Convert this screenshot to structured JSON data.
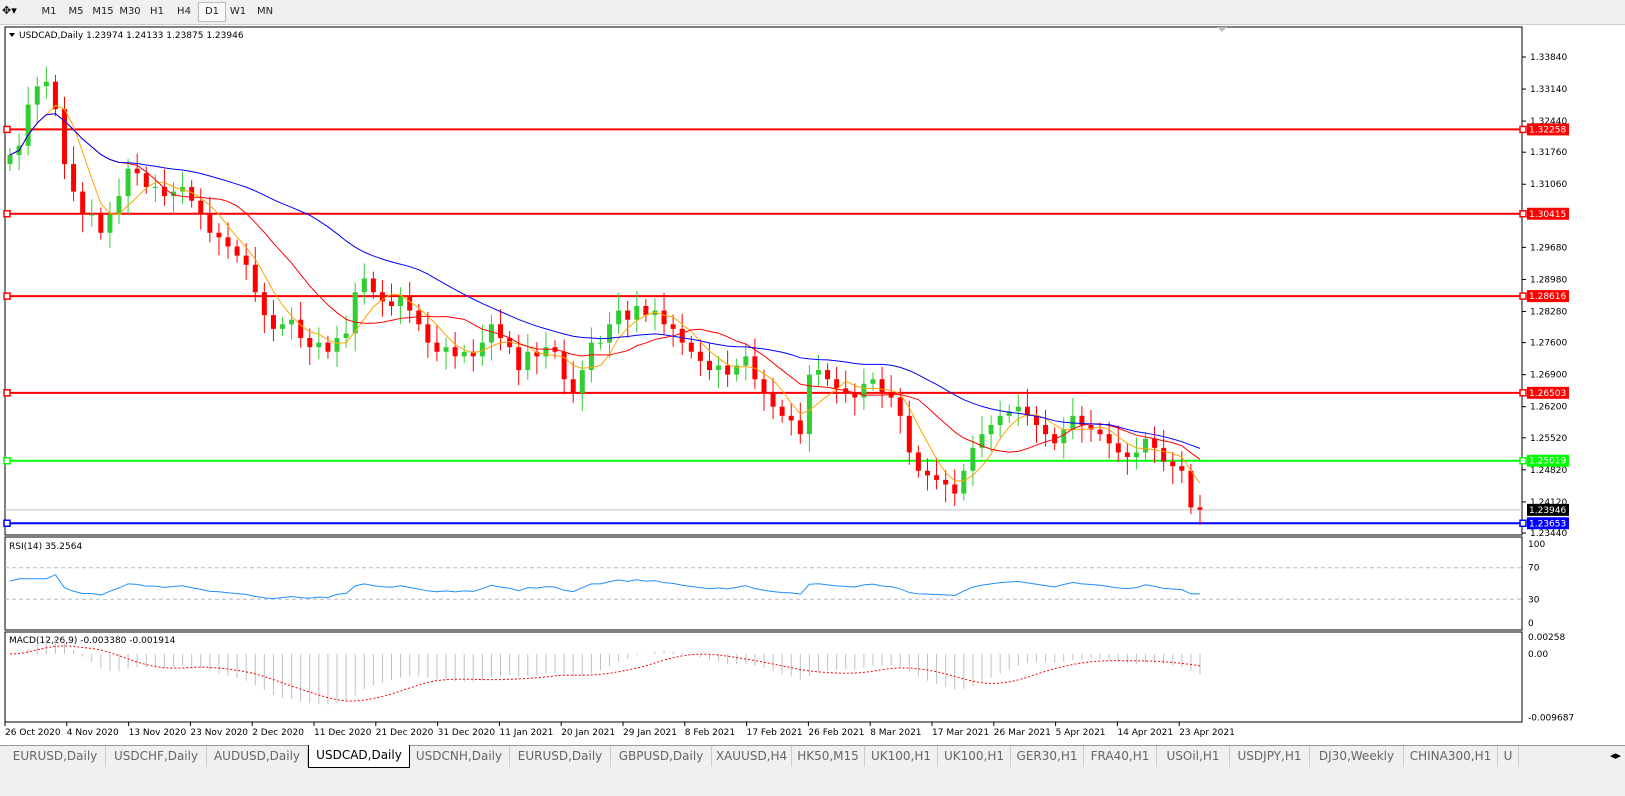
{
  "toolbar": {
    "timeframes": [
      "M1",
      "M5",
      "M15",
      "M30",
      "H1",
      "H4",
      "D1",
      "W1",
      "MN"
    ],
    "active": "D1"
  },
  "chart": {
    "title": "USDCAD,Daily",
    "ohlc": "1.23974 1.24133 1.23875 1.23946",
    "price_ticks": [
      "1.33840",
      "1.33140",
      "1.32440",
      "1.31760",
      "1.31060",
      "1.29680",
      "1.28980",
      "1.28280",
      "1.27600",
      "1.26900",
      "1.26200",
      "1.25520",
      "1.24820",
      "1.24120",
      "1.23440"
    ],
    "current_price": "1.23946",
    "levels": [
      {
        "value": "1.32258",
        "color": "#ff0000"
      },
      {
        "value": "1.30415",
        "color": "#ff0000"
      },
      {
        "value": "1.28616",
        "color": "#ff0000"
      },
      {
        "value": "1.26503",
        "color": "#ff0000"
      },
      {
        "value": "1.25019",
        "color": "#00ff00"
      },
      {
        "value": "1.23653",
        "color": "#0000ff"
      }
    ],
    "date_labels": [
      "26 Oct 2020",
      "4 Nov 2020",
      "13 Nov 2020",
      "23 Nov 2020",
      "2 Dec 2020",
      "11 Dec 2020",
      "21 Dec 2020",
      "31 Dec 2020",
      "11 Jan 2021",
      "20 Jan 2021",
      "29 Jan 2021",
      "8 Feb 2021",
      "17 Feb 2021",
      "26 Feb 2021",
      "8 Mar 2021",
      "17 Mar 2021",
      "26 Mar 2021",
      "5 Apr 2021",
      "14 Apr 2021",
      "23 Apr 2021"
    ],
    "bull_color": "#32cd32",
    "bear_color": "#ff0000"
  },
  "chart_data": {
    "type": "candlestick",
    "ylim": [
      1.2344,
      1.3384
    ],
    "closes": [
      1.317,
      1.319,
      1.328,
      1.332,
      1.333,
      1.327,
      1.315,
      1.309,
      1.304,
      1.304,
      1.3,
      1.304,
      1.308,
      1.314,
      1.313,
      1.31,
      1.31,
      1.308,
      1.309,
      1.31,
      1.307,
      1.304,
      1.3,
      1.299,
      1.297,
      1.295,
      1.293,
      1.287,
      1.282,
      1.279,
      1.28,
      1.281,
      1.277,
      1.275,
      1.276,
      1.274,
      1.277,
      1.278,
      1.287,
      1.29,
      1.287,
      1.285,
      1.284,
      1.286,
      1.283,
      1.28,
      1.276,
      1.274,
      1.275,
      1.273,
      1.274,
      1.273,
      1.276,
      1.28,
      1.277,
      1.275,
      1.27,
      1.274,
      1.273,
      1.275,
      1.274,
      1.268,
      1.265,
      1.27,
      1.276,
      1.276,
      1.28,
      1.283,
      1.281,
      1.284,
      1.282,
      1.283,
      1.28,
      1.279,
      1.276,
      1.274,
      1.272,
      1.27,
      1.271,
      1.269,
      1.271,
      1.273,
      1.268,
      1.265,
      1.262,
      1.26,
      1.259,
      1.256,
      1.269,
      1.27,
      1.268,
      1.266,
      1.265,
      1.264,
      1.267,
      1.268,
      1.265,
      1.264,
      1.26,
      1.252,
      1.248,
      1.247,
      1.246,
      1.245,
      1.243,
      1.248,
      1.253,
      1.256,
      1.258,
      1.26,
      1.261,
      1.262,
      1.26,
      1.258,
      1.256,
      1.254,
      1.257,
      1.26,
      1.258,
      1.257,
      1.256,
      1.254,
      1.252,
      1.251,
      1.252,
      1.255,
      1.253,
      1.25,
      1.249,
      1.248,
      1.24,
      1.2395
    ]
  },
  "rsi": {
    "label": "RSI(14) 35.2564",
    "ticks": [
      "100",
      "70",
      "30",
      "0"
    ],
    "color": "#1e90ff"
  },
  "macd": {
    "label": "MACD(12,26,9) -0.003380 -0.001914",
    "ticks": [
      "0.00258",
      "0.00",
      "-0.009687"
    ]
  },
  "tabs": [
    "EURUSD,Daily",
    "USDCHF,Daily",
    "AUDUSD,Daily",
    "USDCAD,Daily",
    "USDCNH,Daily",
    "EURUSD,Daily",
    "GBPUSD,Daily",
    "XAUUSD,H4",
    "HK50,M15",
    "UK100,H1",
    "UK100,H1",
    "GER30,H1",
    "FRA40,H1",
    "USOil,H1",
    "USDJPY,H1",
    "DJ30,Weekly",
    "CHINA300,H1",
    "U"
  ],
  "active_tab": "USDCAD,Daily"
}
